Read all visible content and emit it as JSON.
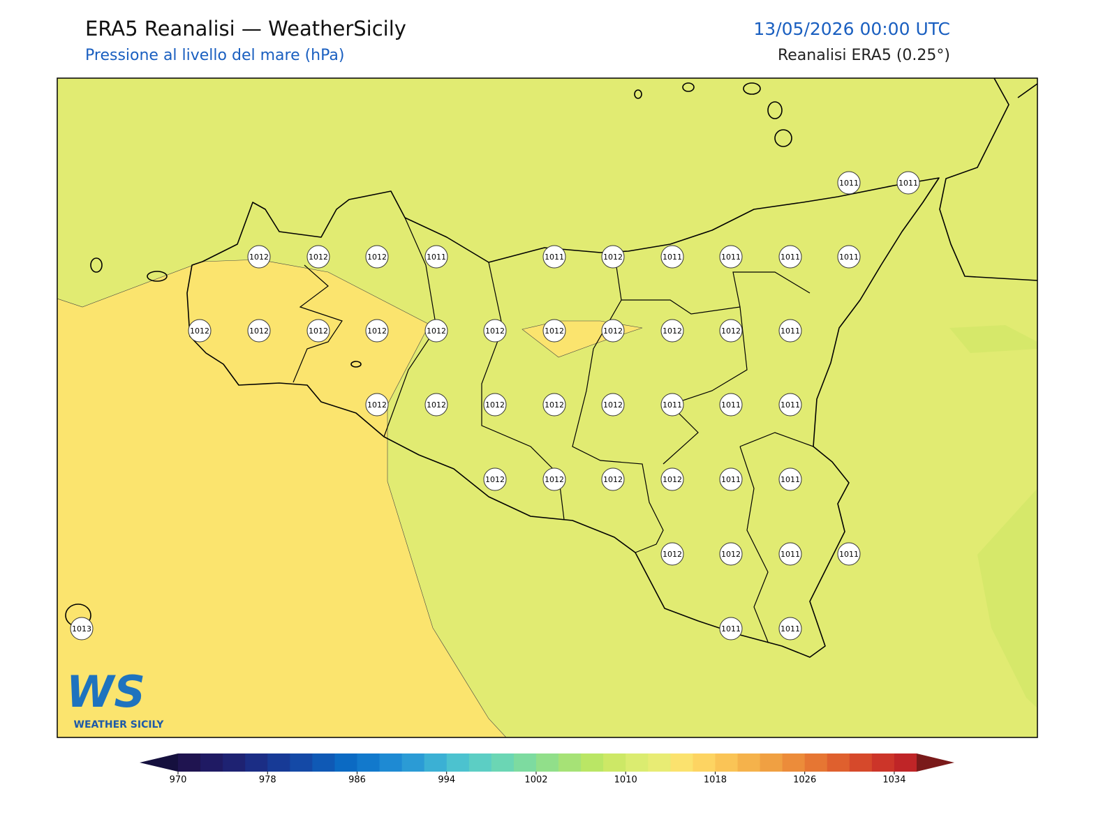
{
  "header": {
    "title": "ERA5 Reanalisi — WeatherSicily",
    "subtitle": "Pressione al livello del mare (hPa)",
    "datetime": "13/05/2026 00:00 UTC",
    "source": "Reanalisi ERA5 (0.25°)"
  },
  "map": {
    "stations": [
      1011,
      1011,
      1012,
      1012,
      1012,
      1011,
      1011,
      1012,
      1011,
      1011,
      1011,
      1011,
      1012,
      1012,
      1012,
      1012,
      1012,
      1012,
      1012,
      1012,
      1012,
      1012,
      1011,
      1012,
      1012,
      1012,
      1012,
      1012,
      1011,
      1011,
      1011,
      1012,
      1012,
      1012,
      1012,
      1011,
      1011,
      1012,
      1012,
      1011,
      1011,
      1013,
      1011,
      1011
    ]
  },
  "logo": {
    "mark": "WS",
    "text": "WEATHER SICILY"
  },
  "colorbar": {
    "lim": [
      970,
      1036
    ],
    "ticks": [
      970,
      978,
      986,
      994,
      1002,
      1010,
      1018,
      1026,
      1034
    ],
    "under_color": "#15103e",
    "over_color": "#7a1a1a",
    "colors": [
      "#1f1450",
      "#1f1a63",
      "#1e2272",
      "#1b2d85",
      "#173a96",
      "#1449a6",
      "#0f59b5",
      "#0b6ac3",
      "#1279cc",
      "#1e8ad3",
      "#2b9bd5",
      "#3bb0d4",
      "#4cc2cf",
      "#5ccec4",
      "#6bd6b4",
      "#7ddba0",
      "#91df8a",
      "#a6e276",
      "#bae665",
      "#cde866",
      "#dbec70",
      "#e8ec74",
      "#fbe26e",
      "#fdd462",
      "#fac456",
      "#f5b24b",
      "#f0a042",
      "#ec8c3a",
      "#e67633",
      "#df602e",
      "#d6492b",
      "#cc3529",
      "#bf2527"
    ]
  }
}
